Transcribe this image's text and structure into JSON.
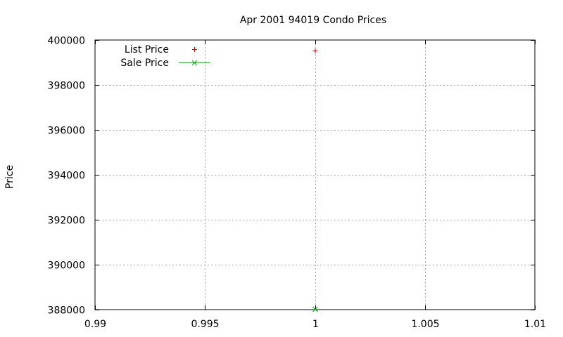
{
  "chart_data": {
    "type": "scatter",
    "title": "Apr 2001 94019 Condo Prices",
    "xlabel": "",
    "ylabel": "Price",
    "xlim": [
      0.99,
      1.01
    ],
    "ylim": [
      388000,
      400000
    ],
    "xticks": [
      0.99,
      0.995,
      1,
      1.005,
      1.01
    ],
    "xtick_labels": [
      "0.99",
      "0.995",
      "1",
      "1.005",
      "1.01"
    ],
    "yticks": [
      388000,
      390000,
      392000,
      394000,
      396000,
      398000,
      400000
    ],
    "ytick_labels": [
      "388000",
      "390000",
      "392000",
      "394000",
      "396000",
      "398000",
      "400000"
    ],
    "grid": true,
    "legend_position": "top-left",
    "series": [
      {
        "name": "List Price",
        "marker": "plus",
        "line": false,
        "color": "#cc0000",
        "points": [
          [
            1,
            399500
          ]
        ]
      },
      {
        "name": "Sale Price",
        "marker": "cross",
        "line": true,
        "color": "#00a000",
        "points": [
          [
            1,
            388000
          ]
        ]
      }
    ]
  }
}
